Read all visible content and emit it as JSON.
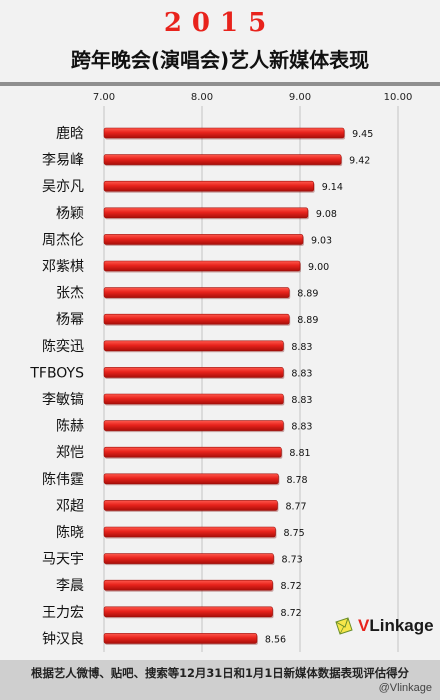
{
  "header": {
    "year": "2015",
    "title": "跨年晚会(演唱会)艺人新媒体表现"
  },
  "chart_data": {
    "type": "bar",
    "orientation": "horizontal",
    "categories": [
      "鹿晗",
      "李易峰",
      "吴亦凡",
      "杨颖",
      "周杰伦",
      "邓紫棋",
      "张杰",
      "杨幂",
      "陈奕迅",
      "TFBOYS",
      "李敏镐",
      "陈赫",
      "郑恺",
      "陈伟霆",
      "邓超",
      "陈晓",
      "马天宇",
      "李晨",
      "王力宏",
      "钟汉良"
    ],
    "values": [
      9.45,
      9.42,
      9.14,
      9.08,
      9.03,
      9.0,
      8.89,
      8.89,
      8.83,
      8.83,
      8.83,
      8.83,
      8.81,
      8.78,
      8.77,
      8.75,
      8.73,
      8.72,
      8.72,
      8.56
    ],
    "value_labels": [
      "9.45",
      "9.42",
      "9.14",
      "9.08",
      "9.03",
      "9.00",
      "8.89",
      "8.89",
      "8.83",
      "8.83",
      "8.83",
      "8.83",
      "8.81",
      "8.78",
      "8.77",
      "8.75",
      "8.73",
      "8.72",
      "8.72",
      "8.56"
    ],
    "xlim": [
      7.0,
      10.0
    ],
    "ticks": [
      "7.00",
      "8.00",
      "9.00",
      "10.00"
    ],
    "tick_values": [
      7,
      8,
      9,
      10
    ],
    "axis_position": "top",
    "grid": true,
    "bar_color": "#e8231c"
  },
  "brand": {
    "v": "V",
    "rest": "Linkage"
  },
  "footer": {
    "note": "根据艺人微博、贴吧、搜索等12月31日和1月1日新媒体数据表现评估得分",
    "credit": "@Vlinkage"
  }
}
